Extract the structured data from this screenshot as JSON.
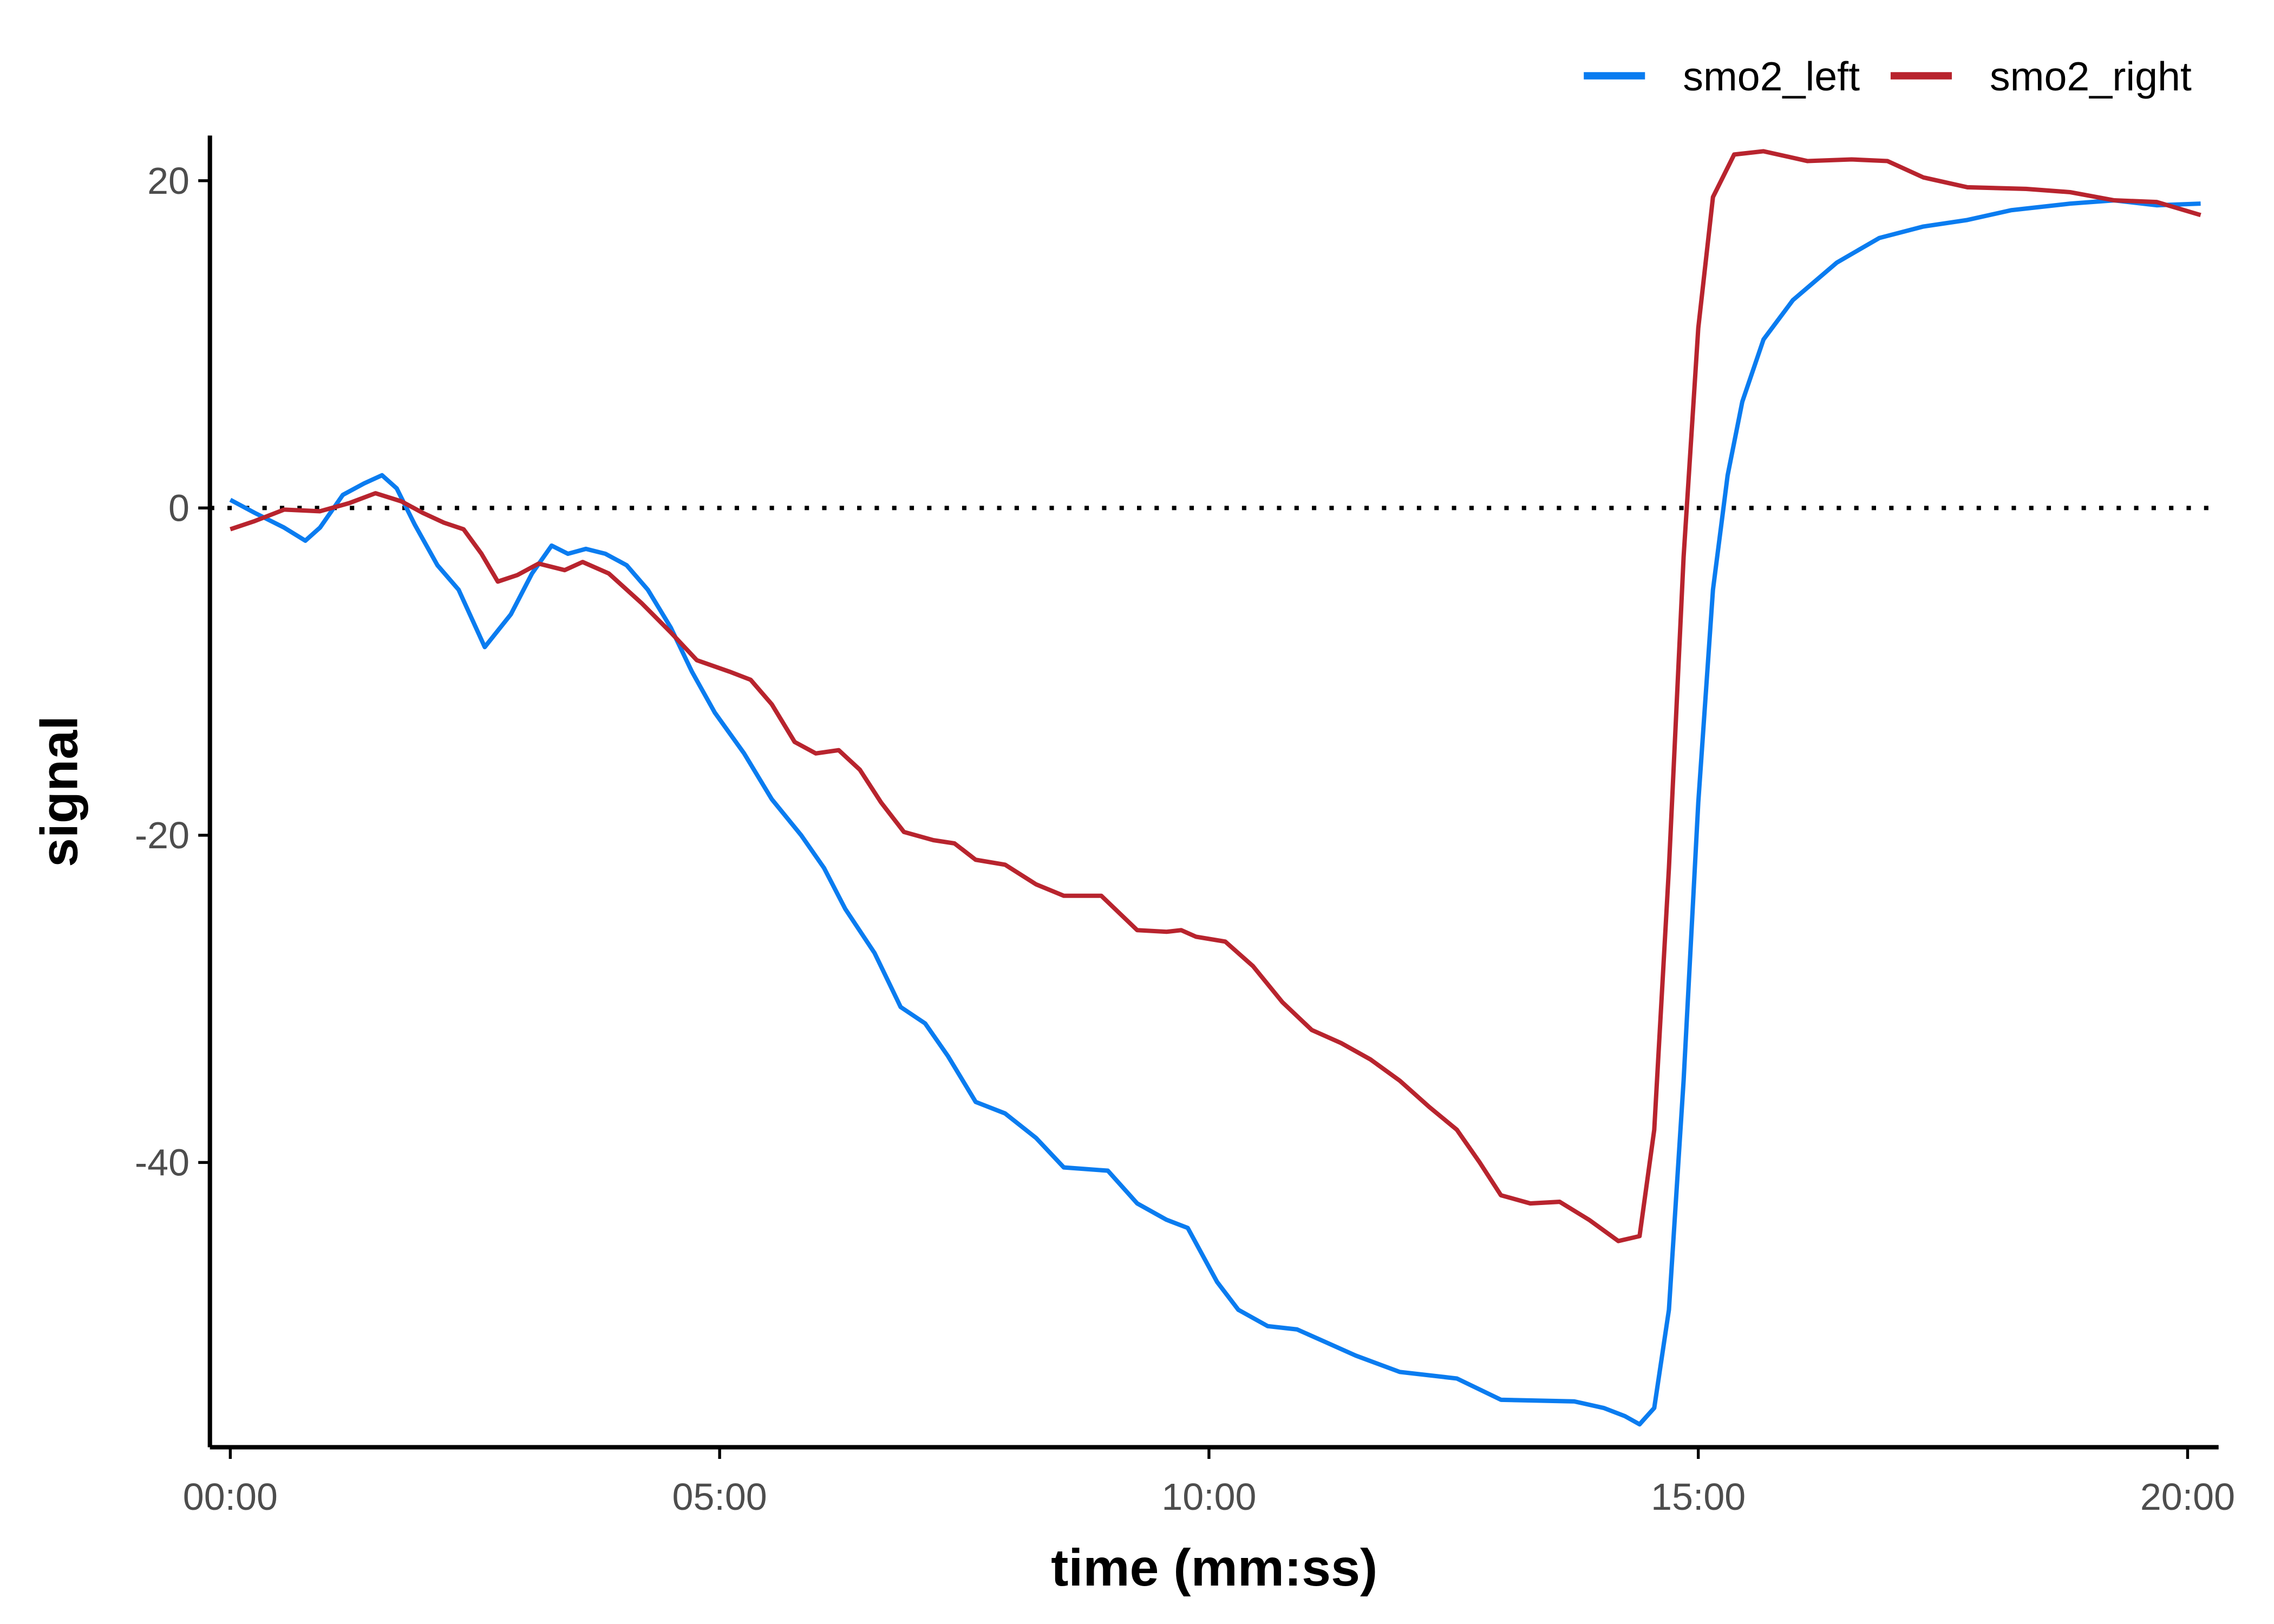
{
  "chart_data": {
    "type": "line",
    "x_label": "time (mm:ss)",
    "y_label": "signal",
    "xlim": [
      -12.5,
      1219
    ],
    "ylim": [
      -57.4,
      22.76
    ],
    "xticks": [
      {
        "value": 0,
        "label": "00:00"
      },
      {
        "value": 300,
        "label": "05:00"
      },
      {
        "value": 600,
        "label": "10:00"
      },
      {
        "value": 900,
        "label": "15:00"
      },
      {
        "value": 1200,
        "label": "20:00"
      }
    ],
    "yticks": [
      -40,
      -20,
      0,
      20
    ],
    "reference_line": 0,
    "legend_position": "top-right",
    "series": [
      {
        "name": "smo2_left",
        "color": "#0a7cf0",
        "x": [
          0,
          15,
          33,
          46,
          55,
          69,
          82,
          93,
          102,
          113,
          127,
          140,
          156,
          172,
          185,
          197,
          207,
          218,
          230,
          243,
          256,
          270,
          283,
          297,
          315,
          332,
          350,
          364,
          377,
          395,
          411,
          426,
          440,
          457,
          475,
          494,
          511,
          538,
          556,
          574,
          587,
          605,
          618,
          636,
          654,
          672,
          690,
          717,
          752,
          779,
          824,
          842,
          855,
          864,
          873,
          882,
          891,
          900,
          909,
          918,
          927,
          940,
          958,
          985,
          1011,
          1038,
          1065,
          1092,
          1128,
          1155,
          1181,
          1208
        ],
        "values": [
          0.5,
          -0.3,
          -1.2,
          -2,
          -1.2,
          0.8,
          1.5,
          2,
          1.2,
          -1,
          -3.5,
          -5,
          -8.5,
          -6.5,
          -4,
          -2.3,
          -2.8,
          -2.5,
          -2.8,
          -3.5,
          -5,
          -7.3,
          -10,
          -12.5,
          -15,
          -17.8,
          -20,
          -22,
          -24.5,
          -27.2,
          -30.5,
          -31.5,
          -33.5,
          -36.3,
          -37,
          -38.5,
          -40.3,
          -40.5,
          -42.5,
          -43.5,
          -44,
          -47.3,
          -49,
          -50,
          -50.2,
          -51,
          -51.8,
          -52.8,
          -53.2,
          -54.5,
          -54.6,
          -55,
          -55.5,
          -56,
          -55,
          -49,
          -35,
          -18,
          -5,
          2,
          6.5,
          10.3,
          12.7,
          15,
          16.5,
          17.2,
          17.6,
          18.2,
          18.6,
          18.8,
          18.5,
          18.6
        ]
      },
      {
        "name": "smo2_right",
        "color": "#b8242e",
        "x": [
          0,
          15,
          33,
          55,
          73,
          89,
          105,
          118,
          131,
          143,
          154,
          164,
          176,
          189,
          205,
          216,
          232,
          252,
          270,
          286,
          306,
          319,
          332,
          346,
          359,
          373,
          386,
          399,
          413,
          431,
          444,
          457,
          475,
          494,
          511,
          534,
          556,
          574,
          583,
          592,
          610,
          627,
          645,
          663,
          681,
          699,
          717,
          735,
          752,
          766,
          779,
          797,
          815,
          833,
          851,
          864,
          873,
          882,
          891,
          900,
          909,
          922,
          940,
          967,
          994,
          1016,
          1038,
          1065,
          1101,
          1128,
          1155,
          1181,
          1208
        ],
        "values": [
          -1.3,
          -0.8,
          -0.1,
          -0.2,
          0.3,
          0.9,
          0.4,
          -0.3,
          -0.9,
          -1.3,
          -2.8,
          -4.5,
          -4.1,
          -3.4,
          -3.8,
          -3.3,
          -4,
          -5.8,
          -7.6,
          -9.3,
          -10,
          -10.5,
          -12,
          -14.3,
          -15,
          -14.8,
          -16,
          -18,
          -19.8,
          -20.3,
          -20.5,
          -21.5,
          -21.8,
          -23,
          -23.7,
          -23.7,
          -25.8,
          -25.9,
          -25.8,
          -26.2,
          -26.5,
          -28,
          -30.2,
          -31.9,
          -32.7,
          -33.7,
          -35,
          -36.6,
          -38,
          -40,
          -42,
          -42.5,
          -42.4,
          -43.5,
          -44.8,
          -44.5,
          -38,
          -22,
          -3,
          11,
          19,
          21.6,
          21.8,
          21.2,
          21.3,
          21.2,
          20.2,
          19.6,
          19.5,
          19.3,
          18.8,
          18.7,
          17.9
        ]
      }
    ]
  }
}
